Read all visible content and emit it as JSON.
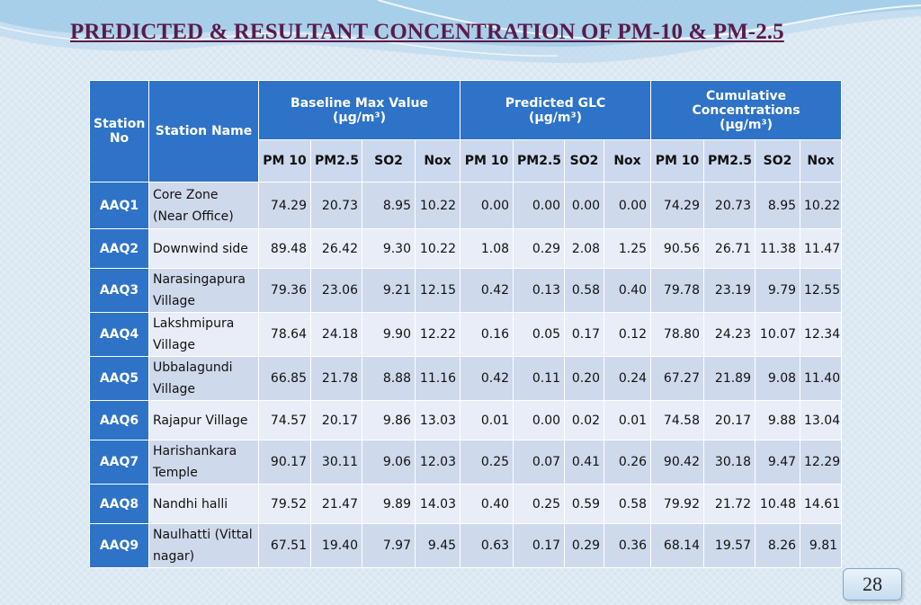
{
  "title": "PREDICTED & RESULTANT CONCENTRATION OF PM-10 & PM-2.5",
  "table": {
    "col_station_no": "Station No",
    "col_station_name": "Station Name",
    "groups": [
      {
        "label": "Baseline Max Value",
        "unit": "(µg/m³)"
      },
      {
        "label": "Predicted GLC",
        "unit": "(µg/m³)"
      },
      {
        "label": "Cumulative Concentrations",
        "unit": "(µg/m³)"
      }
    ],
    "subcols": [
      "PM 10",
      "PM2.5",
      "SO2",
      "Nox"
    ],
    "rows": [
      {
        "id": "AAQ1",
        "name": "Core Zone (Near Office)",
        "values": [
          "74.29",
          "20.73",
          "8.95",
          "10.22",
          "0.00",
          "0.00",
          "0.00",
          "0.00",
          "74.29",
          "20.73",
          "8.95",
          "10.22"
        ]
      },
      {
        "id": "AAQ2",
        "name": "Downwind side",
        "values": [
          "89.48",
          "26.42",
          "9.30",
          "10.22",
          "1.08",
          "0.29",
          "2.08",
          "1.25",
          "90.56",
          "26.71",
          "11.38",
          "11.47"
        ]
      },
      {
        "id": "AAQ3",
        "name": "Narasingapura Village",
        "values": [
          "79.36",
          "23.06",
          "9.21",
          "12.15",
          "0.42",
          "0.13",
          "0.58",
          "0.40",
          "79.78",
          "23.19",
          "9.79",
          "12.55"
        ]
      },
      {
        "id": "AAQ4",
        "name": "Lakshmipura Village",
        "values": [
          "78.64",
          "24.18",
          "9.90",
          "12.22",
          "0.16",
          "0.05",
          "0.17",
          "0.12",
          "78.80",
          "24.23",
          "10.07",
          "12.34"
        ]
      },
      {
        "id": "AAQ5",
        "name": "Ubbalagundi Village",
        "values": [
          "66.85",
          "21.78",
          "8.88",
          "11.16",
          "0.42",
          "0.11",
          "0.20",
          "0.24",
          "67.27",
          "21.89",
          "9.08",
          "11.40"
        ]
      },
      {
        "id": "AAQ6",
        "name": "Rajapur Village",
        "values": [
          "74.57",
          "20.17",
          "9.86",
          "13.03",
          "0.01",
          "0.00",
          "0.02",
          "0.01",
          "74.58",
          "20.17",
          "9.88",
          "13.04"
        ]
      },
      {
        "id": "AAQ7",
        "name": "Harishankara Temple",
        "values": [
          "90.17",
          "30.11",
          "9.06",
          "12.03",
          "0.25",
          "0.07",
          "0.41",
          "0.26",
          "90.42",
          "30.18",
          "9.47",
          "12.29"
        ]
      },
      {
        "id": "AAQ8",
        "name": "Nandhi halli",
        "values": [
          "79.52",
          "21.47",
          "9.89",
          "14.03",
          "0.40",
          "0.25",
          "0.59",
          "0.58",
          "79.92",
          "21.72",
          "10.48",
          "14.61"
        ]
      },
      {
        "id": "AAQ9",
        "name": "Naulhatti (Vittal nagar)",
        "values": [
          "67.51",
          "19.40",
          "7.97",
          "9.45",
          "0.63",
          "0.17",
          "0.29",
          "0.36",
          "68.14",
          "19.57",
          "8.26",
          "9.81"
        ]
      }
    ]
  },
  "page_number": "28",
  "colors": {
    "header": "#2e73c8",
    "title": "#5a1a4a",
    "row_odd": "#cfd9ec",
    "row_even": "#e8edf7"
  }
}
